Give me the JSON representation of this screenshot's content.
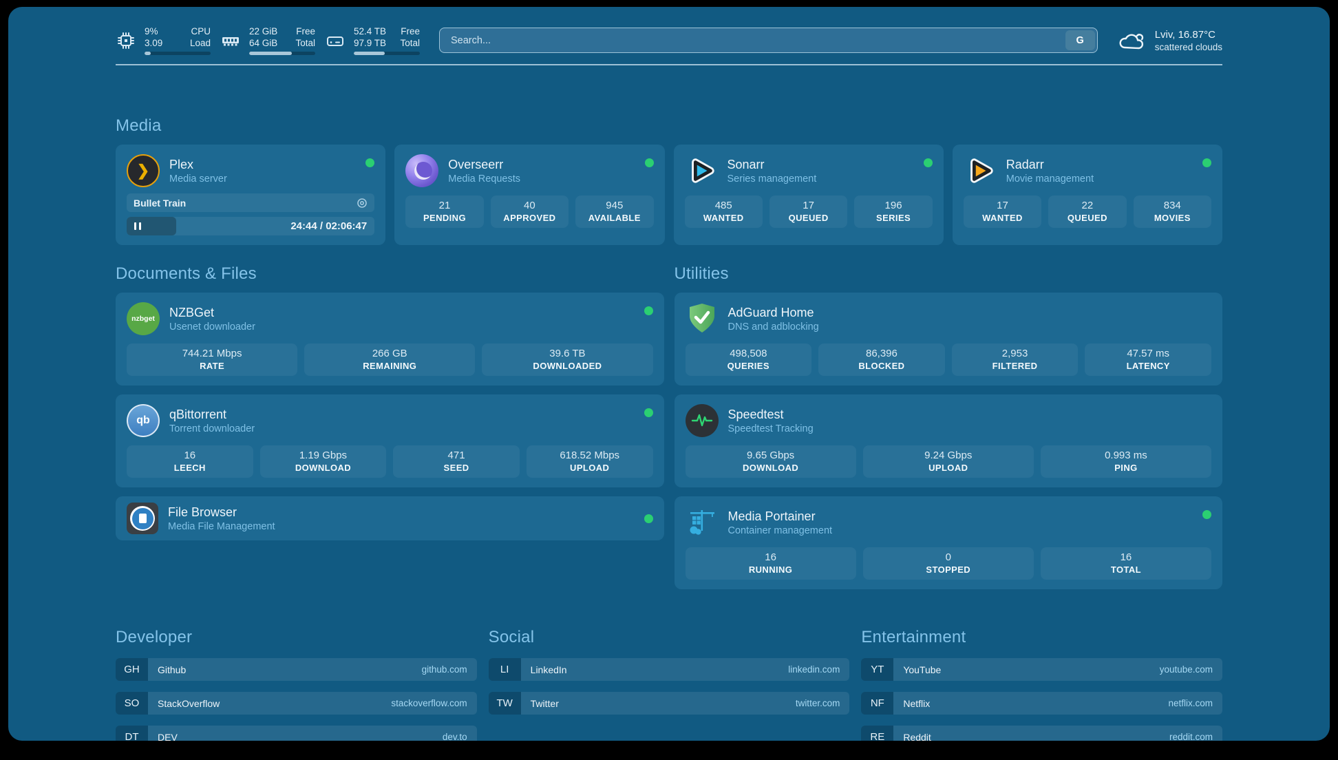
{
  "topbar": {
    "cpu": {
      "value1": "9%",
      "value2": "3.09",
      "label1": "CPU",
      "label2": "Load",
      "progress": 9
    },
    "ram": {
      "value1": "22 GiB",
      "value2": "64 GiB",
      "label1": "Free",
      "label2": "Total",
      "progress": 65
    },
    "disk": {
      "value1": "52.4 TB",
      "value2": "97.9 TB",
      "label1": "Free",
      "label2": "Total",
      "progress": 47
    },
    "search": {
      "placeholder": "Search...",
      "button_label": "G"
    },
    "weather": {
      "location": "Lviv, 16.87°C",
      "condition": "scattered clouds"
    }
  },
  "sections": {
    "media": {
      "heading": "Media"
    },
    "documents": {
      "heading": "Documents & Files"
    },
    "utilities": {
      "heading": "Utilities"
    }
  },
  "apps": {
    "plex": {
      "name": "Plex",
      "subtitle": "Media server",
      "now_playing": "Bullet Train",
      "time": "24:44 / 02:06:47",
      "progress": 20
    },
    "overseerr": {
      "name": "Overseerr",
      "subtitle": "Media Requests",
      "stats": [
        {
          "value": "21",
          "label": "PENDING"
        },
        {
          "value": "40",
          "label": "APPROVED"
        },
        {
          "value": "945",
          "label": "AVAILABLE"
        }
      ]
    },
    "sonarr": {
      "name": "Sonarr",
      "subtitle": "Series management",
      "stats": [
        {
          "value": "485",
          "label": "WANTED"
        },
        {
          "value": "17",
          "label": "QUEUED"
        },
        {
          "value": "196",
          "label": "SERIES"
        }
      ]
    },
    "radarr": {
      "name": "Radarr",
      "subtitle": "Movie management",
      "stats": [
        {
          "value": "17",
          "label": "WANTED"
        },
        {
          "value": "22",
          "label": "QUEUED"
        },
        {
          "value": "834",
          "label": "MOVIES"
        }
      ]
    },
    "nzbget": {
      "name": "NZBGet",
      "subtitle": "Usenet downloader",
      "icon_text": "nzbget",
      "stats": [
        {
          "value": "744.21 Mbps",
          "label": "RATE"
        },
        {
          "value": "266 GB",
          "label": "REMAINING"
        },
        {
          "value": "39.6 TB",
          "label": "DOWNLOADED"
        }
      ]
    },
    "qbittorrent": {
      "name": "qBittorrent",
      "subtitle": "Torrent downloader",
      "icon_text": "qb",
      "stats": [
        {
          "value": "16",
          "label": "LEECH"
        },
        {
          "value": "1.19 Gbps",
          "label": "DOWNLOAD"
        },
        {
          "value": "471",
          "label": "SEED"
        },
        {
          "value": "618.52 Mbps",
          "label": "UPLOAD"
        }
      ]
    },
    "filebrowser": {
      "name": "File Browser",
      "subtitle": "Media File Management"
    },
    "adguard": {
      "name": "AdGuard Home",
      "subtitle": "DNS and adblocking",
      "stats": [
        {
          "value": "498,508",
          "label": "QUERIES"
        },
        {
          "value": "86,396",
          "label": "BLOCKED"
        },
        {
          "value": "2,953",
          "label": "FILTERED"
        },
        {
          "value": "47.57 ms",
          "label": "LATENCY"
        }
      ]
    },
    "speedtest": {
      "name": "Speedtest",
      "subtitle": "Speedtest Tracking",
      "stats": [
        {
          "value": "9.65 Gbps",
          "label": "DOWNLOAD"
        },
        {
          "value": "9.24 Gbps",
          "label": "UPLOAD"
        },
        {
          "value": "0.993 ms",
          "label": "PING"
        }
      ]
    },
    "portainer": {
      "name": "Media Portainer",
      "subtitle": "Container management",
      "stats": [
        {
          "value": "16",
          "label": "RUNNING"
        },
        {
          "value": "0",
          "label": "STOPPED"
        },
        {
          "value": "16",
          "label": "TOTAL"
        }
      ]
    }
  },
  "bookmarks": {
    "developer": {
      "heading": "Developer",
      "items": [
        {
          "abbr": "GH",
          "name": "Github",
          "url": "github.com"
        },
        {
          "abbr": "SO",
          "name": "StackOverflow",
          "url": "stackoverflow.com"
        },
        {
          "abbr": "DT",
          "name": "DEV",
          "url": "dev.to"
        }
      ]
    },
    "social": {
      "heading": "Social",
      "items": [
        {
          "abbr": "LI",
          "name": "LinkedIn",
          "url": "linkedin.com"
        },
        {
          "abbr": "TW",
          "name": "Twitter",
          "url": "twitter.com"
        }
      ]
    },
    "entertainment": {
      "heading": "Entertainment",
      "items": [
        {
          "abbr": "YT",
          "name": "YouTube",
          "url": "youtube.com"
        },
        {
          "abbr": "NF",
          "name": "Netflix",
          "url": "netflix.com"
        },
        {
          "abbr": "RE",
          "name": "Reddit",
          "url": "reddit.com"
        }
      ]
    }
  }
}
